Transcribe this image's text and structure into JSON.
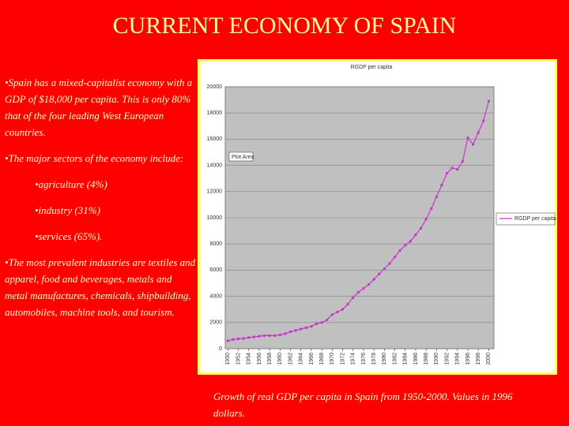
{
  "title": "CURRENT ECONOMY OF SPAIN",
  "bullets": [
    "•Spain has a mixed-capitalist economy with a GDP of $18,000 per capita. This is only 80% that of the four leading West European countries.",
    "•The major sectors of the economy include:",
    "•agriculture (4%)",
    "•industry (31%)",
    "•services (65%).",
    "•The most prevalent industries are textiles and apparel, food and beverages, metals and metal manufactures, chemicals, shipbuilding, automobiles, machine tools, and tourism."
  ],
  "caption": "Growth of real GDP per capita in Spain from 1950-2000. Values in 1996 dollars.",
  "chart_data": {
    "type": "line",
    "title": "RGDP per capita",
    "plot_area_label": "Plot Area",
    "x": [
      1950,
      1951,
      1952,
      1953,
      1954,
      1955,
      1956,
      1957,
      1958,
      1959,
      1960,
      1961,
      1962,
      1963,
      1964,
      1965,
      1966,
      1967,
      1968,
      1969,
      1970,
      1971,
      1972,
      1973,
      1974,
      1975,
      1976,
      1977,
      1978,
      1979,
      1980,
      1981,
      1982,
      1983,
      1984,
      1985,
      1986,
      1987,
      1988,
      1989,
      1990,
      1991,
      1992,
      1993,
      1994,
      1995,
      1996,
      1997,
      1998,
      1999,
      2000
    ],
    "series": [
      {
        "name": "RGDP per capita",
        "color": "#cc33cc",
        "values": [
          600,
          700,
          750,
          780,
          850,
          900,
          950,
          1000,
          1000,
          1000,
          1050,
          1150,
          1300,
          1400,
          1500,
          1600,
          1700,
          1900,
          2000,
          2200,
          2600,
          2800,
          3000,
          3400,
          3900,
          4300,
          4600,
          4900,
          5300,
          5700,
          6100,
          6500,
          7000,
          7500,
          7900,
          8200,
          8700,
          9200,
          9900,
          10700,
          11600,
          12500,
          13400,
          13800,
          13700,
          14300,
          16100,
          15600,
          16500,
          17400,
          18900
        ]
      }
    ],
    "xlim": [
      1949.5,
      2001
    ],
    "xticks": [
      1950,
      1952,
      1954,
      1956,
      1958,
      1960,
      1962,
      1964,
      1966,
      1968,
      1970,
      1972,
      1974,
      1976,
      1978,
      1980,
      1982,
      1984,
      1986,
      1988,
      1990,
      1992,
      1994,
      1996,
      1998,
      2000
    ],
    "ylim": [
      0,
      20000
    ],
    "yticks": [
      0,
      2000,
      4000,
      6000,
      8000,
      10000,
      12000,
      14000,
      16000,
      18000,
      20000
    ],
    "grid": true,
    "legend": "right"
  }
}
